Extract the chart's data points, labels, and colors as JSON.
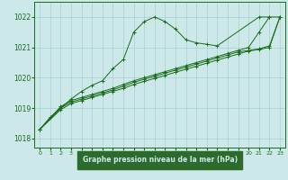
{
  "background_color": "#cce8e8",
  "plot_bg_color": "#cce8e8",
  "grid_color": "#a8d0d0",
  "line_color": "#1a6b1a",
  "xlabel": "Graphe pression niveau de la mer (hPa)",
  "xlabel_bg": "#2d6b2d",
  "xlabel_fg": "#cce8e8",
  "xlim": [
    -0.5,
    23.5
  ],
  "ylim": [
    1017.7,
    1022.5
  ],
  "yticks": [
    1018,
    1019,
    1020,
    1021,
    1022
  ],
  "xticks": [
    0,
    1,
    2,
    3,
    4,
    5,
    6,
    7,
    8,
    9,
    10,
    11,
    12,
    13,
    14,
    15,
    16,
    17,
    18,
    19,
    20,
    21,
    22,
    23
  ],
  "series": [
    {
      "x": [
        0,
        1,
        2,
        3,
        4,
        5,
        6,
        7,
        8,
        9,
        10,
        11,
        12,
        13,
        14,
        15,
        16,
        17,
        21,
        22
      ],
      "y": [
        1018.3,
        1018.7,
        1019.0,
        1019.3,
        1019.55,
        1019.75,
        1019.9,
        1020.3,
        1020.6,
        1021.5,
        1021.85,
        1022.0,
        1021.85,
        1021.6,
        1021.25,
        1021.15,
        1021.1,
        1021.05,
        1022.0,
        1022.0
      ]
    },
    {
      "x": [
        0,
        2,
        3,
        4,
        5,
        6,
        7,
        8,
        9,
        10,
        11,
        12,
        13,
        14,
        15,
        16,
        17,
        18,
        19,
        20,
        21,
        22,
        23
      ],
      "y": [
        1018.3,
        1019.05,
        1019.25,
        1019.35,
        1019.45,
        1019.55,
        1019.65,
        1019.78,
        1019.9,
        1020.0,
        1020.1,
        1020.2,
        1020.3,
        1020.4,
        1020.5,
        1020.6,
        1020.7,
        1020.8,
        1020.9,
        1021.0,
        1021.5,
        1022.0,
        1022.0
      ]
    },
    {
      "x": [
        0,
        2,
        3,
        4,
        5,
        6,
        7,
        8,
        9,
        10,
        11,
        12,
        13,
        14,
        15,
        16,
        17,
        18,
        19,
        20,
        21,
        22,
        23
      ],
      "y": [
        1018.3,
        1019.0,
        1019.2,
        1019.3,
        1019.4,
        1019.5,
        1019.6,
        1019.72,
        1019.85,
        1019.95,
        1020.05,
        1020.15,
        1020.25,
        1020.35,
        1020.45,
        1020.55,
        1020.65,
        1020.75,
        1020.85,
        1020.9,
        1020.95,
        1021.05,
        1022.0
      ]
    },
    {
      "x": [
        0,
        2,
        3,
        4,
        5,
        6,
        7,
        8,
        9,
        10,
        11,
        12,
        13,
        14,
        15,
        16,
        17,
        18,
        19,
        20,
        21,
        22,
        23
      ],
      "y": [
        1018.3,
        1018.95,
        1019.15,
        1019.25,
        1019.35,
        1019.45,
        1019.55,
        1019.65,
        1019.78,
        1019.88,
        1019.98,
        1020.08,
        1020.18,
        1020.28,
        1020.38,
        1020.48,
        1020.58,
        1020.68,
        1020.78,
        1020.88,
        1020.93,
        1021.0,
        1022.0
      ]
    }
  ]
}
